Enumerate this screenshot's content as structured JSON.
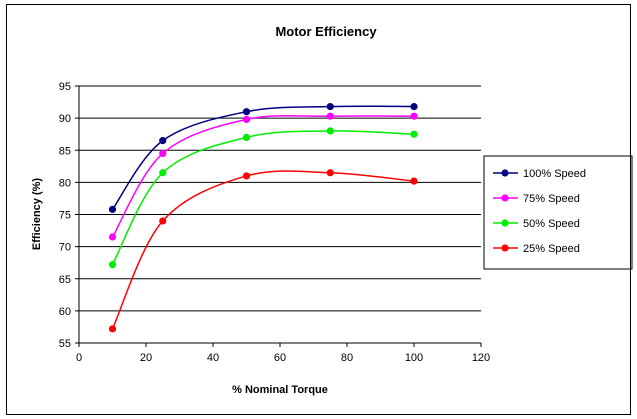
{
  "chart_data": {
    "type": "line",
    "title": "Motor Efficiency",
    "xlabel": "% Nominal Torque",
    "ylabel": "Efficiency (%)",
    "xlim": [
      0,
      120
    ],
    "ylim": [
      55,
      95
    ],
    "xticks": [
      0,
      20,
      40,
      60,
      80,
      100,
      120
    ],
    "yticks": [
      55,
      60,
      65,
      70,
      75,
      80,
      85,
      90,
      95
    ],
    "grid": "horizontal",
    "legend_position": "right",
    "series": [
      {
        "name": "100% Speed",
        "color": "#000080",
        "x": [
          10,
          25,
          50,
          75,
          100
        ],
        "y": [
          75.8,
          86.5,
          91.0,
          91.8,
          91.8
        ]
      },
      {
        "name": "75% Speed",
        "color": "#ff00ff",
        "x": [
          10,
          25,
          50,
          75,
          100
        ],
        "y": [
          71.5,
          84.5,
          89.8,
          90.3,
          90.3
        ]
      },
      {
        "name": "50% Speed",
        "color": "#00ee00",
        "x": [
          10,
          25,
          50,
          75,
          100
        ],
        "y": [
          67.2,
          81.5,
          87.0,
          88.0,
          87.5
        ]
      },
      {
        "name": "25% Speed",
        "color": "#ff0000",
        "x": [
          10,
          25,
          50,
          75,
          100
        ],
        "y": [
          57.2,
          74.0,
          81.0,
          81.5,
          80.2
        ]
      }
    ]
  }
}
